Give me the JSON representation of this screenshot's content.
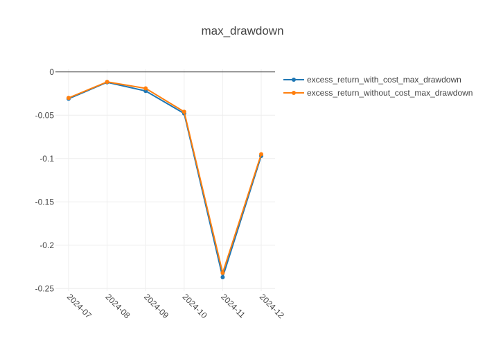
{
  "chart_data": {
    "type": "line",
    "title": "max_drawdown",
    "xlabel": "",
    "ylabel": "",
    "categories": [
      "2024-07",
      "2024-08",
      "2024-09",
      "2024-10",
      "2024-11",
      "2024-12"
    ],
    "yticks": [
      0,
      -0.05,
      -0.1,
      -0.15,
      -0.2,
      -0.25
    ],
    "ytick_labels": [
      "0",
      "-0.05",
      "-0.1",
      "-0.15",
      "-0.2",
      "-0.25"
    ],
    "ylim": [
      -0.253,
      0.003
    ],
    "grid": true,
    "legend_position": "top-right",
    "series": [
      {
        "name": "excess_return_with_cost_max_drawdown",
        "color": "#1f77b4",
        "values": [
          -0.031,
          -0.012,
          -0.022,
          -0.048,
          -0.237,
          -0.097
        ]
      },
      {
        "name": "excess_return_without_cost_max_drawdown",
        "color": "#ff7f0e",
        "values": [
          -0.03,
          -0.0115,
          -0.019,
          -0.046,
          -0.232,
          -0.095
        ]
      }
    ]
  }
}
